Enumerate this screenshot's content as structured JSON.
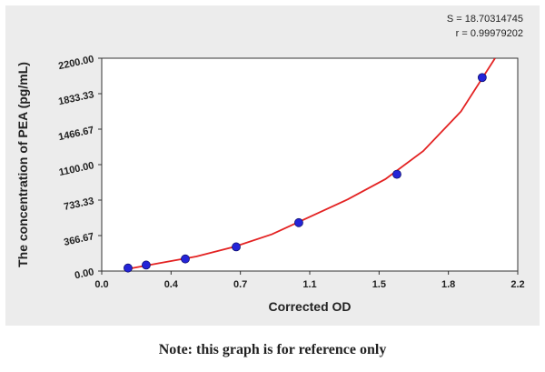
{
  "chart_data": {
    "type": "scatter",
    "stats": [
      "S = 18.70314745",
      "r = 0.99979202"
    ],
    "xlabel": "Corrected OD",
    "ylabel": "The concentration of PEA (pg/mL)",
    "x": [
      0.139,
      0.235,
      0.442,
      0.711,
      1.042,
      1.561,
      2.012
    ],
    "values": [
      31,
      62,
      125,
      250,
      500,
      1000,
      2000
    ],
    "color": "#2424d8",
    "fit": {
      "color": "#e32222",
      "x": [
        0.12,
        0.3,
        0.5,
        0.7,
        0.9,
        1.1,
        1.3,
        1.5,
        1.7,
        1.9,
        2.08
      ],
      "y": [
        15,
        80,
        150,
        250,
        380,
        560,
        740,
        950,
        1240,
        1650,
        2200
      ]
    },
    "xlim": [
      0,
      2.2
    ],
    "ylim": [
      0,
      2200
    ],
    "xticks": [
      {
        "value": 0,
        "label": "0.0"
      },
      {
        "value": 0.3667,
        "label": "0.4"
      },
      {
        "value": 0.7333,
        "label": "0.7"
      },
      {
        "value": 1.1,
        "label": "1.1"
      },
      {
        "value": 1.4667,
        "label": "1.5"
      },
      {
        "value": 1.8333,
        "label": "1.8"
      },
      {
        "value": 2.2,
        "label": "2.2"
      }
    ],
    "yticks": [
      {
        "value": 0,
        "label": "0.00"
      },
      366.67,
      733.33,
      {
        "value": 1100,
        "label": "1100.00"
      },
      1466.67,
      1833.33,
      {
        "value": 2200,
        "label": "2200.00"
      }
    ]
  },
  "note": "Note: this graph is for reference only"
}
